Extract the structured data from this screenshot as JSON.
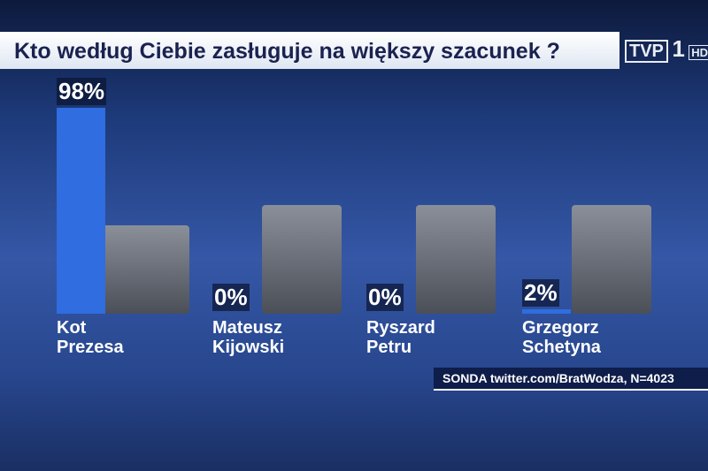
{
  "chart_data": {
    "type": "bar",
    "title": "Kto według Ciebie zasługuje na większy szacunek ?",
    "logo": {
      "brand": "TVP",
      "channel": "1",
      "quality": "HD"
    },
    "categories": [
      "Kot Prezesa",
      "Mateusz Kijowski",
      "Ryszard Petru",
      "Grzegorz Schetyna"
    ],
    "values": [
      98,
      0,
      0,
      2
    ],
    "value_labels": [
      "98%",
      "0%",
      "0%",
      "2%"
    ],
    "color": "#2f6de0",
    "ylim": [
      0,
      100
    ],
    "source": "SONDA twitter.com/BratWodza, N=4023"
  }
}
